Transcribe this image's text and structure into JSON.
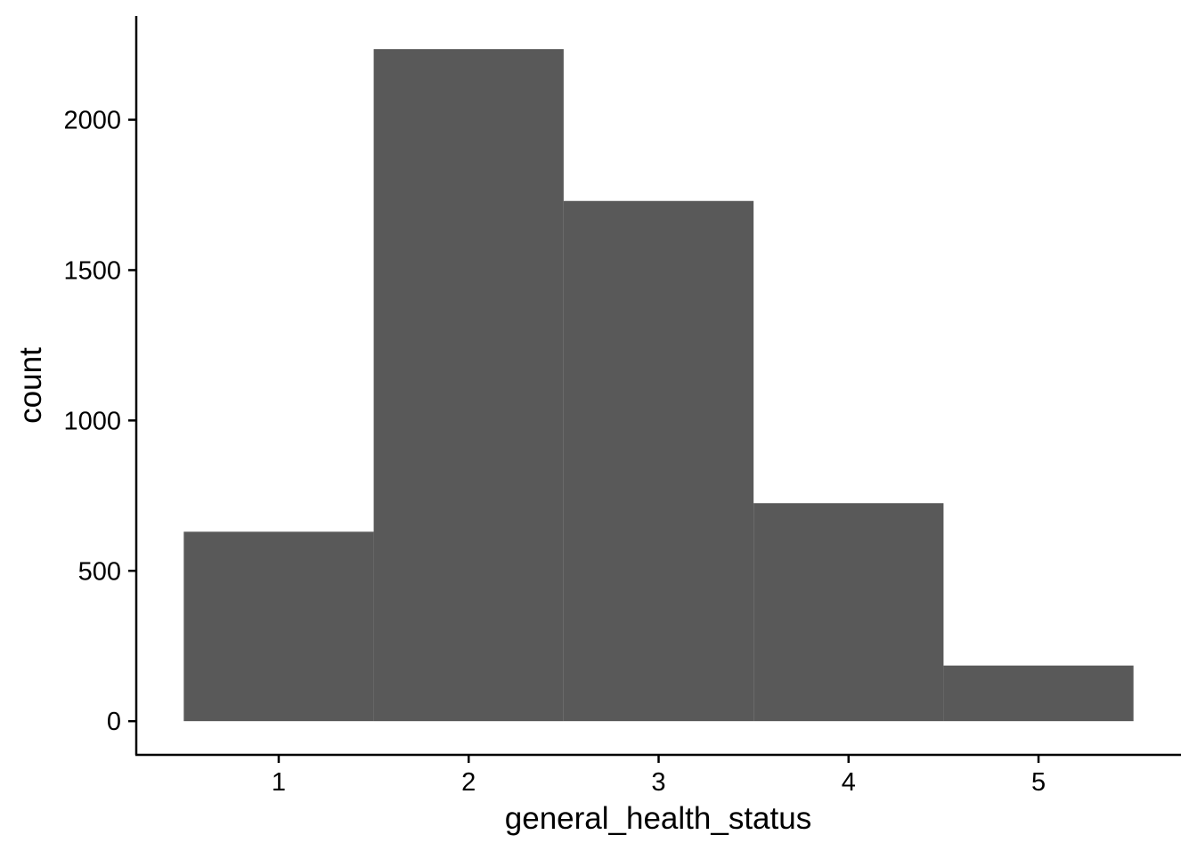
{
  "chart_data": {
    "type": "bar",
    "subtype": "histogram",
    "x": [
      1,
      2,
      3,
      4,
      5
    ],
    "bin_width": 1,
    "values": [
      630,
      2235,
      1730,
      725,
      185
    ],
    "xlabel": "general_health_status",
    "ylabel": "count",
    "xlim": [
      0.25,
      5.75
    ],
    "ylim": [
      -112,
      2345
    ],
    "x_ticks": [
      1,
      2,
      3,
      4,
      5
    ],
    "y_ticks": [
      0,
      500,
      1000,
      1500,
      2000
    ],
    "grid": false,
    "legend": "none",
    "colors": {
      "bar_fill": "#595959",
      "axis": "#000000",
      "background": "#ffffff"
    }
  }
}
